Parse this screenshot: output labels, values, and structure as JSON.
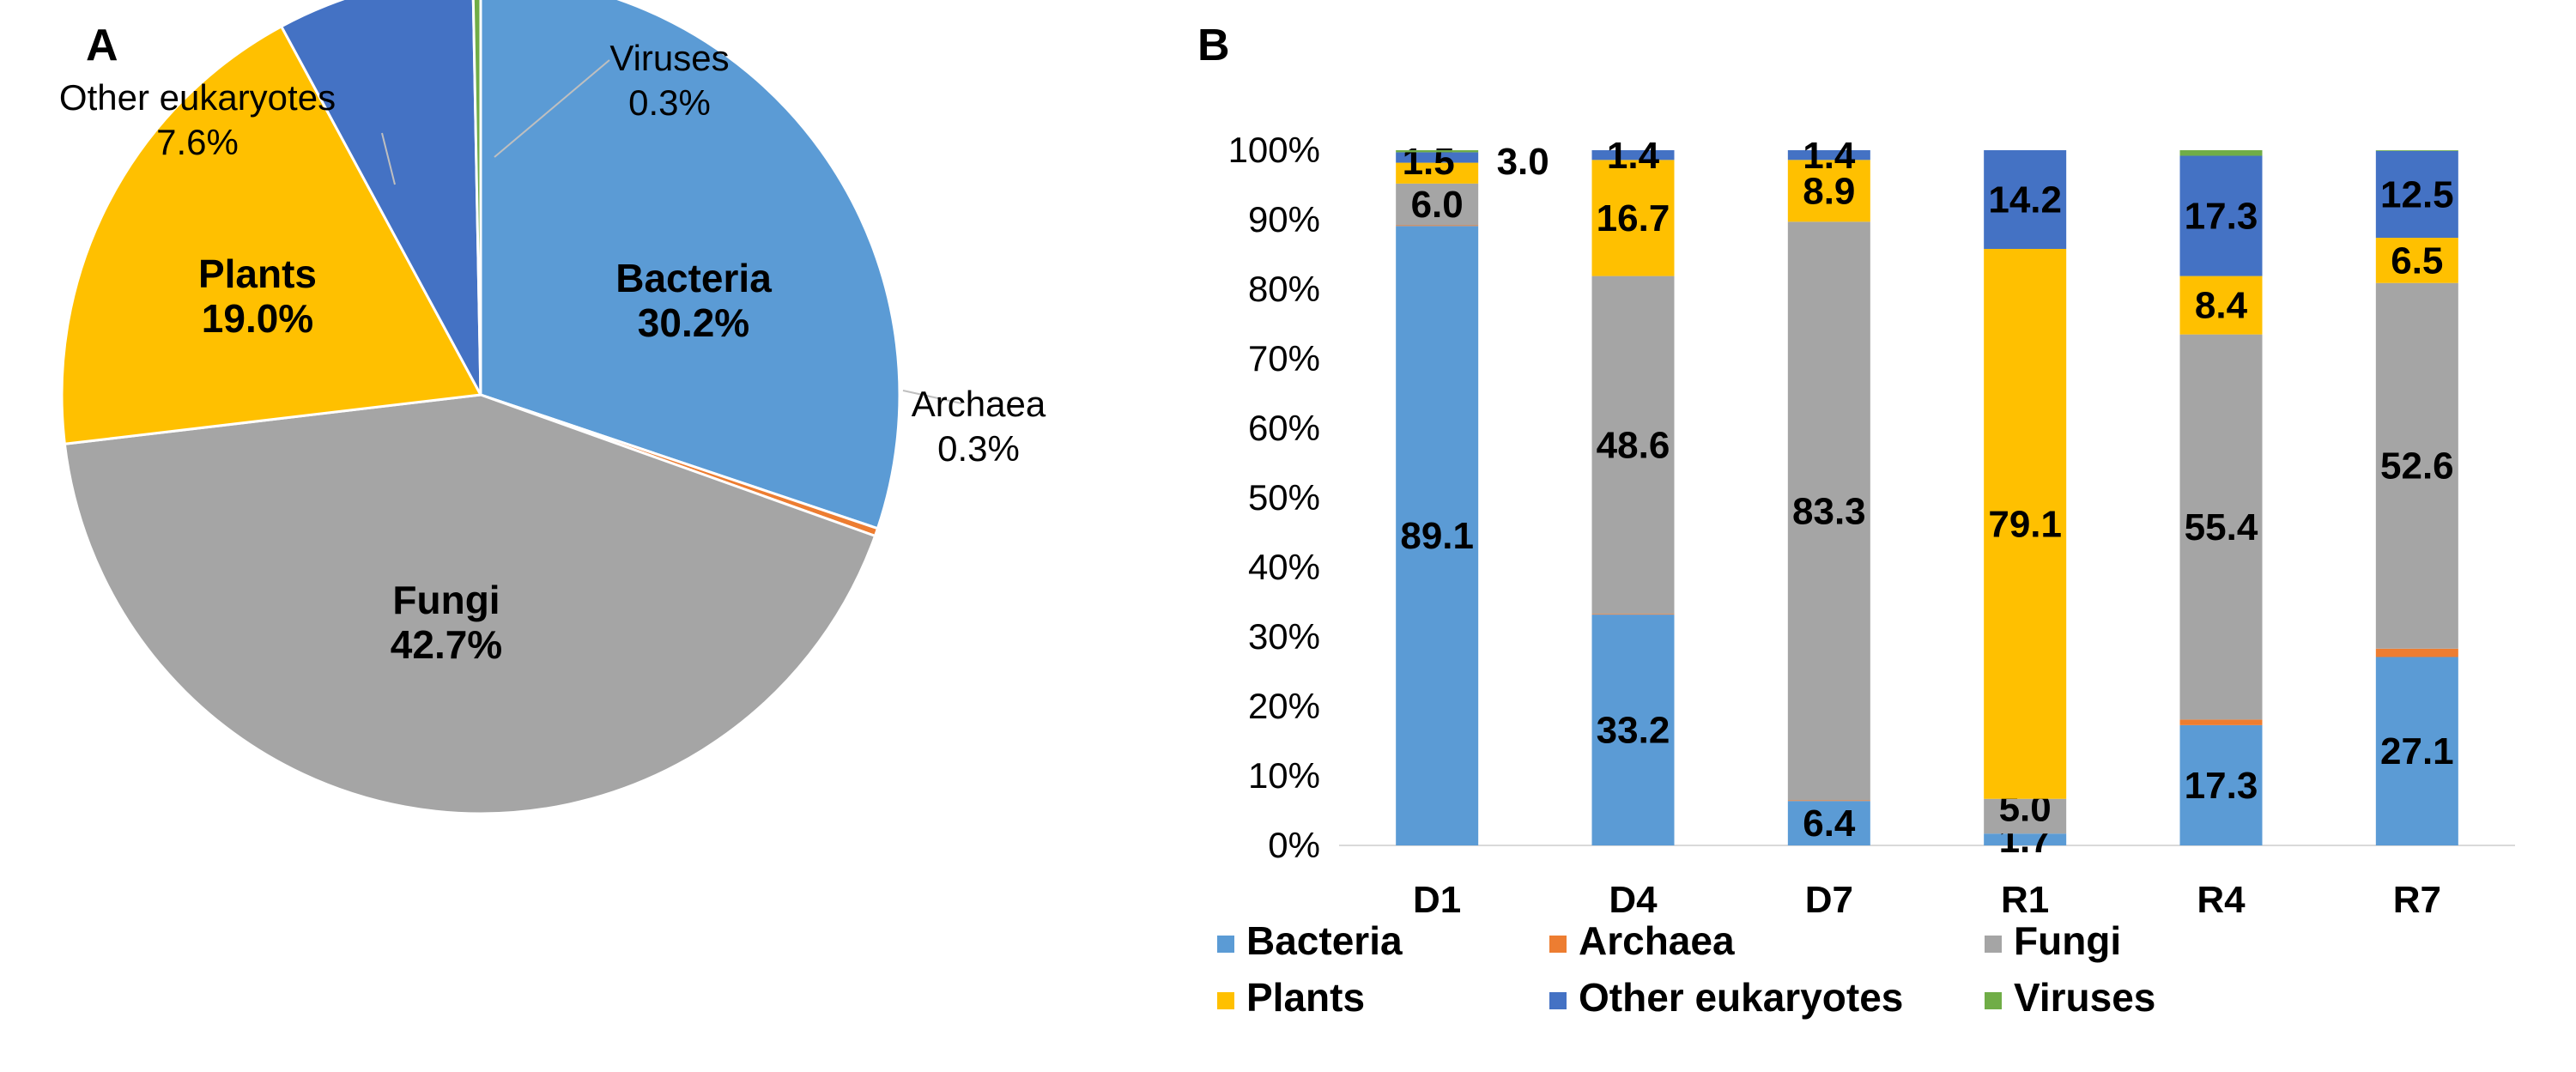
{
  "colors": {
    "Bacteria": "#5B9BD5",
    "Archaea": "#ED7D31",
    "Fungi": "#A5A5A5",
    "Plants": "#FFC000",
    "Other eukaryotes": "#4472C4",
    "Viruses": "#70AD47",
    "text": "#000000",
    "gridline": "#d9d9d9",
    "leader": "#bfbfbf"
  },
  "chart_data": [
    {
      "panel_label": "A",
      "type": "pie",
      "slices": [
        {
          "name": "Bacteria",
          "value": 30.2,
          "label_name": "Bacteria",
          "label_pct": "30.2%"
        },
        {
          "name": "Archaea",
          "value": 0.3,
          "label_name": "Archaea",
          "label_pct": "0.3%"
        },
        {
          "name": "Fungi",
          "value": 42.7,
          "label_name": "Fungi",
          "label_pct": "42.7%"
        },
        {
          "name": "Plants",
          "value": 19.0,
          "label_name": "Plants",
          "label_pct": "19.0%"
        },
        {
          "name": "Other eukaryotes",
          "value": 7.6,
          "label_name": "Other eukaryotes",
          "label_pct": "7.6%"
        },
        {
          "name": "Viruses",
          "value": 0.3,
          "label_name": "Viruses",
          "label_pct": "0.3%"
        }
      ]
    },
    {
      "panel_label": "B",
      "type": "bar",
      "stacked": "percent",
      "categories": [
        "D1",
        "D4",
        "D7",
        "R1",
        "R4",
        "R7"
      ],
      "ylim": [
        0,
        100
      ],
      "yticks": [
        "0%",
        "10%",
        "20%",
        "30%",
        "40%",
        "50%",
        "60%",
        "70%",
        "80%",
        "90%",
        "100%"
      ],
      "series": [
        {
          "name": "Bacteria",
          "values": [
            89.1,
            33.2,
            6.4,
            1.7,
            17.3,
            27.1
          ],
          "labels": [
            "89.1",
            "33.2",
            "6.4",
            "1.7",
            "17.3",
            "27.1"
          ]
        },
        {
          "name": "Archaea",
          "values": [
            0.1,
            0.1,
            0.1,
            0.0,
            0.8,
            1.2
          ],
          "labels": [
            "",
            "",
            "",
            "",
            "",
            ""
          ]
        },
        {
          "name": "Fungi",
          "values": [
            6.0,
            48.6,
            83.3,
            5.0,
            55.4,
            52.6
          ],
          "labels": [
            "6.0",
            "48.6",
            "83.3",
            "5.0",
            "55.4",
            "52.6"
          ]
        },
        {
          "name": "Plants",
          "values": [
            3.0,
            16.7,
            8.9,
            79.1,
            8.4,
            6.5
          ],
          "labels": [
            "3.0",
            "16.7",
            "8.9",
            "79.1",
            "8.4",
            "6.5"
          ]
        },
        {
          "name": "Other eukaryotes",
          "values": [
            1.5,
            1.4,
            1.4,
            14.2,
            17.3,
            12.5
          ],
          "labels": [
            "1.5",
            "1.4",
            "1.4",
            "14.2",
            "17.3",
            "12.5"
          ]
        },
        {
          "name": "Viruses",
          "values": [
            0.3,
            0.0,
            0.0,
            0.0,
            0.8,
            0.1
          ],
          "labels": [
            "",
            "",
            "",
            "",
            "",
            ""
          ]
        }
      ],
      "legend": {
        "placement": "bottom",
        "rows": [
          [
            "Bacteria",
            "Archaea",
            "Fungi"
          ],
          [
            "Plants",
            "Other eukaryotes",
            "Viruses"
          ]
        ]
      }
    }
  ]
}
